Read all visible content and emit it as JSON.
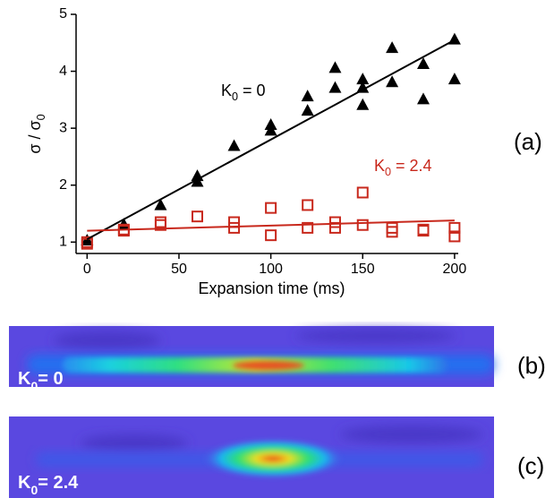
{
  "chart_data": {
    "type": "scatter",
    "x_label": "Expansion time (ms)",
    "y_label": {
      "text": "σ / σ",
      "sub": "0"
    },
    "xlim": [
      -6,
      202
    ],
    "ylim": [
      0.8,
      5
    ],
    "xticks": [
      0,
      50,
      100,
      150,
      200
    ],
    "yticks": [
      1,
      2,
      3,
      4,
      5
    ],
    "series": [
      {
        "color": "#000000",
        "marker": "triangle",
        "x": [
          0,
          20,
          40,
          60,
          60,
          80,
          100,
          100,
          120,
          120,
          135,
          135,
          150,
          150,
          150,
          166,
          166,
          183,
          183,
          200,
          200
        ],
        "values": [
          1.02,
          1.3,
          1.64,
          2.15,
          2.05,
          2.68,
          3.05,
          2.95,
          3.55,
          3.3,
          4.05,
          3.7,
          3.85,
          3.7,
          3.4,
          4.4,
          3.8,
          4.12,
          3.5,
          4.55,
          3.85
        ]
      },
      {
        "color": "#c8281c",
        "marker": "square",
        "x": [
          0,
          0,
          20,
          20,
          40,
          40,
          60,
          80,
          80,
          100,
          100,
          120,
          120,
          135,
          135,
          150,
          150,
          166,
          166,
          183,
          183,
          200,
          200
        ],
        "values": [
          1.0,
          0.97,
          1.2,
          1.22,
          1.35,
          1.3,
          1.45,
          1.35,
          1.25,
          1.6,
          1.12,
          1.65,
          1.25,
          1.35,
          1.25,
          1.87,
          1.3,
          1.25,
          1.18,
          1.22,
          1.2,
          1.25,
          1.1
        ]
      },
      {
        "color": "#000000",
        "marker": "line",
        "x": [
          0,
          200
        ],
        "values": [
          1.05,
          4.55
        ]
      },
      {
        "color": "#c8281c",
        "marker": "line",
        "x": [
          0,
          200
        ],
        "values": [
          1.2,
          1.38
        ]
      }
    ],
    "annotations": [
      {
        "text": "K",
        "sub": "0",
        "after": " = 0",
        "color": "#000000"
      },
      {
        "text": "K",
        "sub": "0",
        "after": " = 2.4",
        "color": "#c8281c"
      }
    ]
  },
  "panels": [
    {
      "tag": "(a)"
    },
    {
      "tag": "(b)",
      "label": {
        "text": "K",
        "sub": "0",
        "after": "= 0"
      }
    },
    {
      "tag": "(c)",
      "label": {
        "text": "K",
        "sub": "0",
        "after": "= 2.4"
      }
    }
  ]
}
